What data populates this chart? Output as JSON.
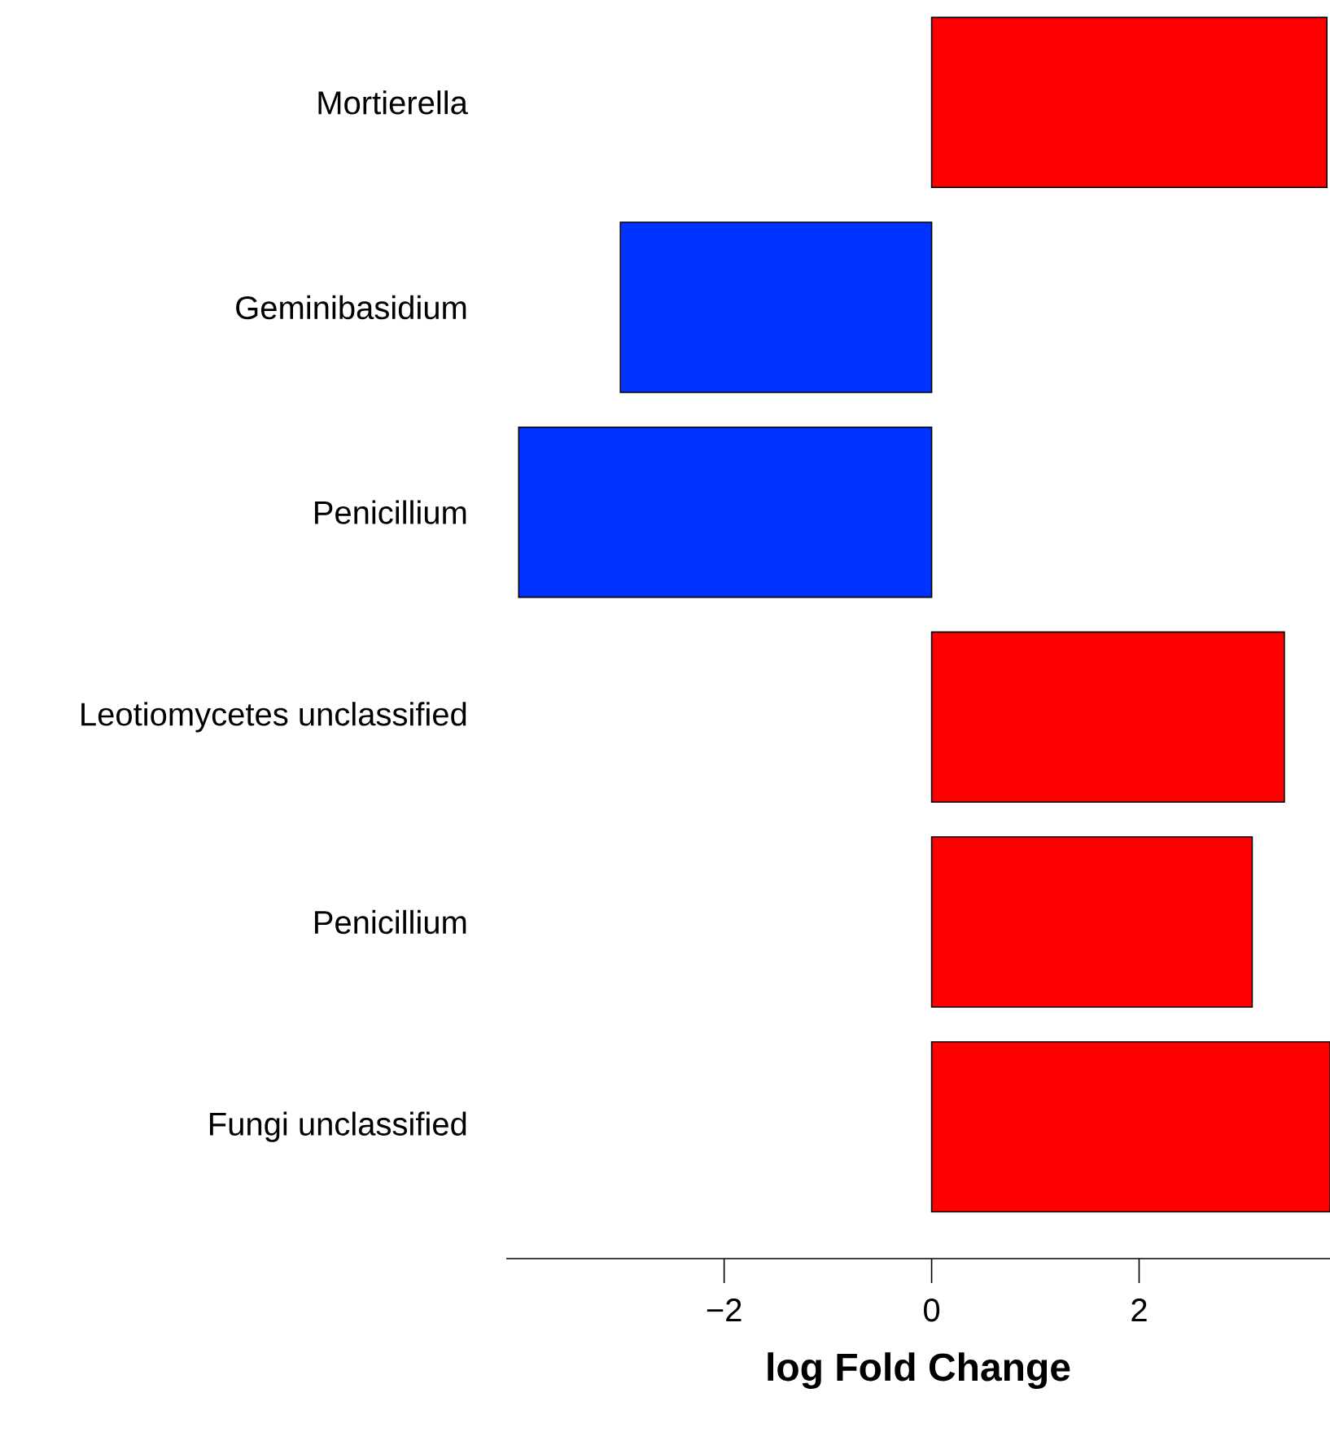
{
  "chart_data": {
    "type": "bar",
    "orientation": "horizontal",
    "xlabel": "log Fold Change",
    "categories": [
      "Mortierella",
      "Geminibasidium",
      "Penicillium",
      "Leotiomycetes unclassified",
      "Penicillium",
      "Fungi unclassified"
    ],
    "values": [
      3.81,
      -3.0,
      -3.98,
      3.4,
      3.09,
      3.84
    ],
    "colors": [
      "#ff0000",
      "#0033ff",
      "#0033ff",
      "#ff0000",
      "#ff0000",
      "#ff0000"
    ],
    "xlim": [
      -4.1,
      3.84
    ],
    "xticks": [
      {
        "value": -2,
        "label": "−2"
      },
      {
        "value": 0,
        "label": "0"
      },
      {
        "value": 2,
        "label": "2"
      }
    ]
  }
}
